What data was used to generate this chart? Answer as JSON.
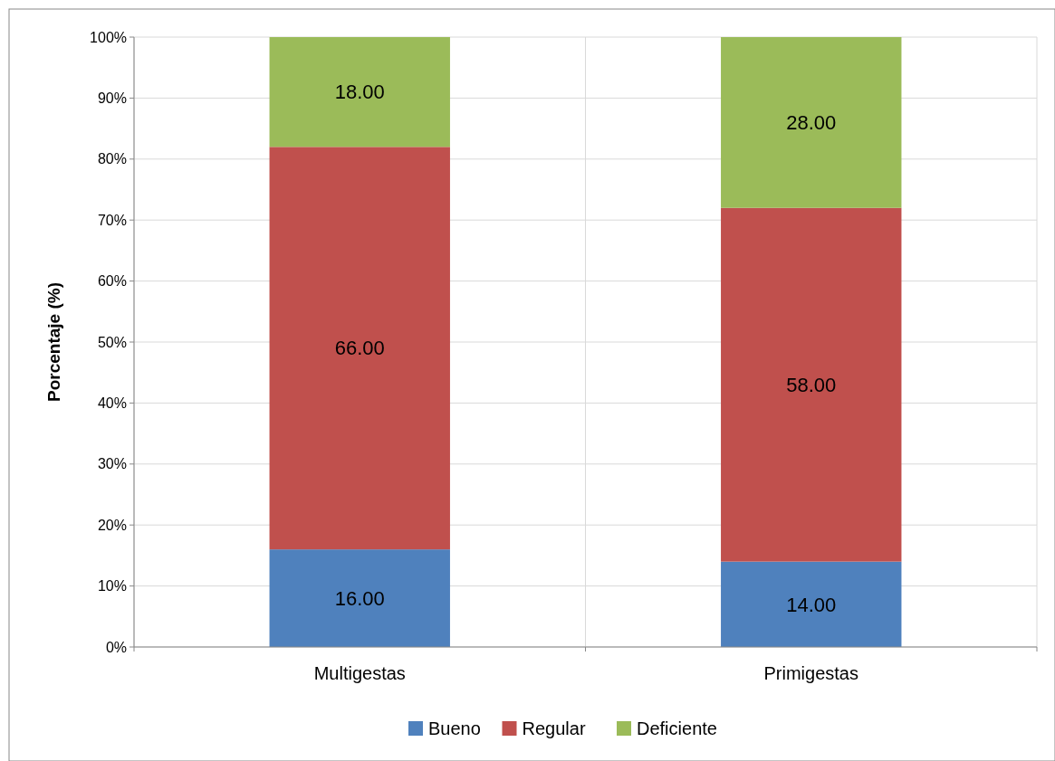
{
  "chart_data": {
    "type": "bar",
    "stacked": true,
    "ylabel": "Porcentaje (%)",
    "categories": [
      "Multigestas",
      "Primigestas"
    ],
    "series": [
      {
        "name": "Bueno",
        "color": "#4f81bd",
        "values": [
          16,
          14
        ],
        "value_labels": [
          "16.00",
          "14.00"
        ]
      },
      {
        "name": "Regular",
        "color": "#c0504d",
        "values": [
          66,
          58
        ],
        "value_labels": [
          "66.00",
          "58.00"
        ]
      },
      {
        "name": "Deficiente",
        "color": "#9bbb59",
        "values": [
          18,
          28
        ],
        "value_labels": [
          "18.00",
          "28.00"
        ]
      }
    ],
    "ylim": [
      0,
      100
    ],
    "yticks": [
      {
        "value": 0,
        "label": "0%"
      },
      {
        "value": 10,
        "label": "10%"
      },
      {
        "value": 20,
        "label": "20%"
      },
      {
        "value": 30,
        "label": "30%"
      },
      {
        "value": 40,
        "label": "40%"
      },
      {
        "value": 50,
        "label": "50%"
      },
      {
        "value": 60,
        "label": "60%"
      },
      {
        "value": 70,
        "label": "70%"
      },
      {
        "value": 80,
        "label": "80%"
      },
      {
        "value": 90,
        "label": "90%"
      },
      {
        "value": 100,
        "label": "100%"
      }
    ],
    "grid": true,
    "legend": "bottom"
  }
}
